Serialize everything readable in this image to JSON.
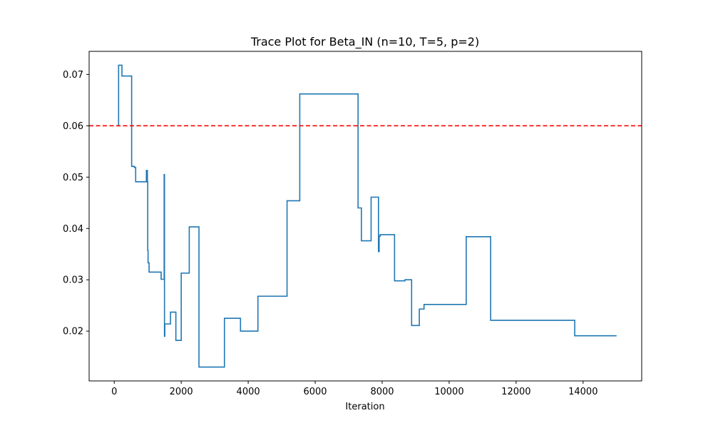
{
  "chart_data": {
    "type": "line",
    "title": "Trace Plot for Beta_IN (n=10, T=5, p=2)",
    "xlabel": "Iteration",
    "ylabel": "",
    "xlim": [
      -750,
      15750
    ],
    "ylim": [
      0.0103,
      0.0745
    ],
    "x_ticks": [
      0,
      2000,
      4000,
      6000,
      8000,
      10000,
      12000,
      14000
    ],
    "x_tick_labels": [
      "0",
      "2000",
      "4000",
      "6000",
      "8000",
      "10000",
      "12000",
      "14000"
    ],
    "y_ticks": [
      0.02,
      0.03,
      0.04,
      0.05,
      0.06,
      0.07
    ],
    "y_tick_labels": [
      "0.02",
      "0.03",
      "0.04",
      "0.05",
      "0.06",
      "0.07"
    ],
    "grid": false,
    "legend": "none",
    "series": [
      {
        "color": "#1f77b4",
        "step": "post",
        "x": [
          100,
          130,
          230,
          520,
          600,
          640,
          960,
          990,
          1000,
          1010,
          1040,
          1400,
          1480,
          1490,
          1500,
          1510,
          1540,
          1680,
          1840,
          1990,
          2000,
          2240,
          2530,
          3290,
          3770,
          4290,
          5160,
          5300,
          5540,
          7280,
          7320,
          7380,
          7670,
          7890,
          7910,
          7940,
          8370,
          8680,
          8880,
          9110,
          9250,
          10510,
          11240,
          13750,
          15000
        ],
        "y": [
          0.06,
          0.0718,
          0.0697,
          0.0521,
          0.0519,
          0.0491,
          0.0513,
          0.0491,
          0.0357,
          0.0333,
          0.0315,
          0.0301,
          0.0301,
          0.0505,
          0.019,
          0.0214,
          0.0214,
          0.0237,
          0.0182,
          0.0182,
          0.0313,
          0.0403,
          0.013,
          0.0225,
          0.02,
          0.0268,
          0.0454,
          0.0454,
          0.0662,
          0.044,
          0.044,
          0.0376,
          0.0461,
          0.0355,
          0.0385,
          0.0388,
          0.0298,
          0.03,
          0.0211,
          0.0243,
          0.0252,
          0.0384,
          0.0221,
          0.0191,
          0.0191
        ]
      }
    ],
    "reference_line": {
      "y": 0.06,
      "color": "#ff0000",
      "style": "dashed"
    }
  }
}
